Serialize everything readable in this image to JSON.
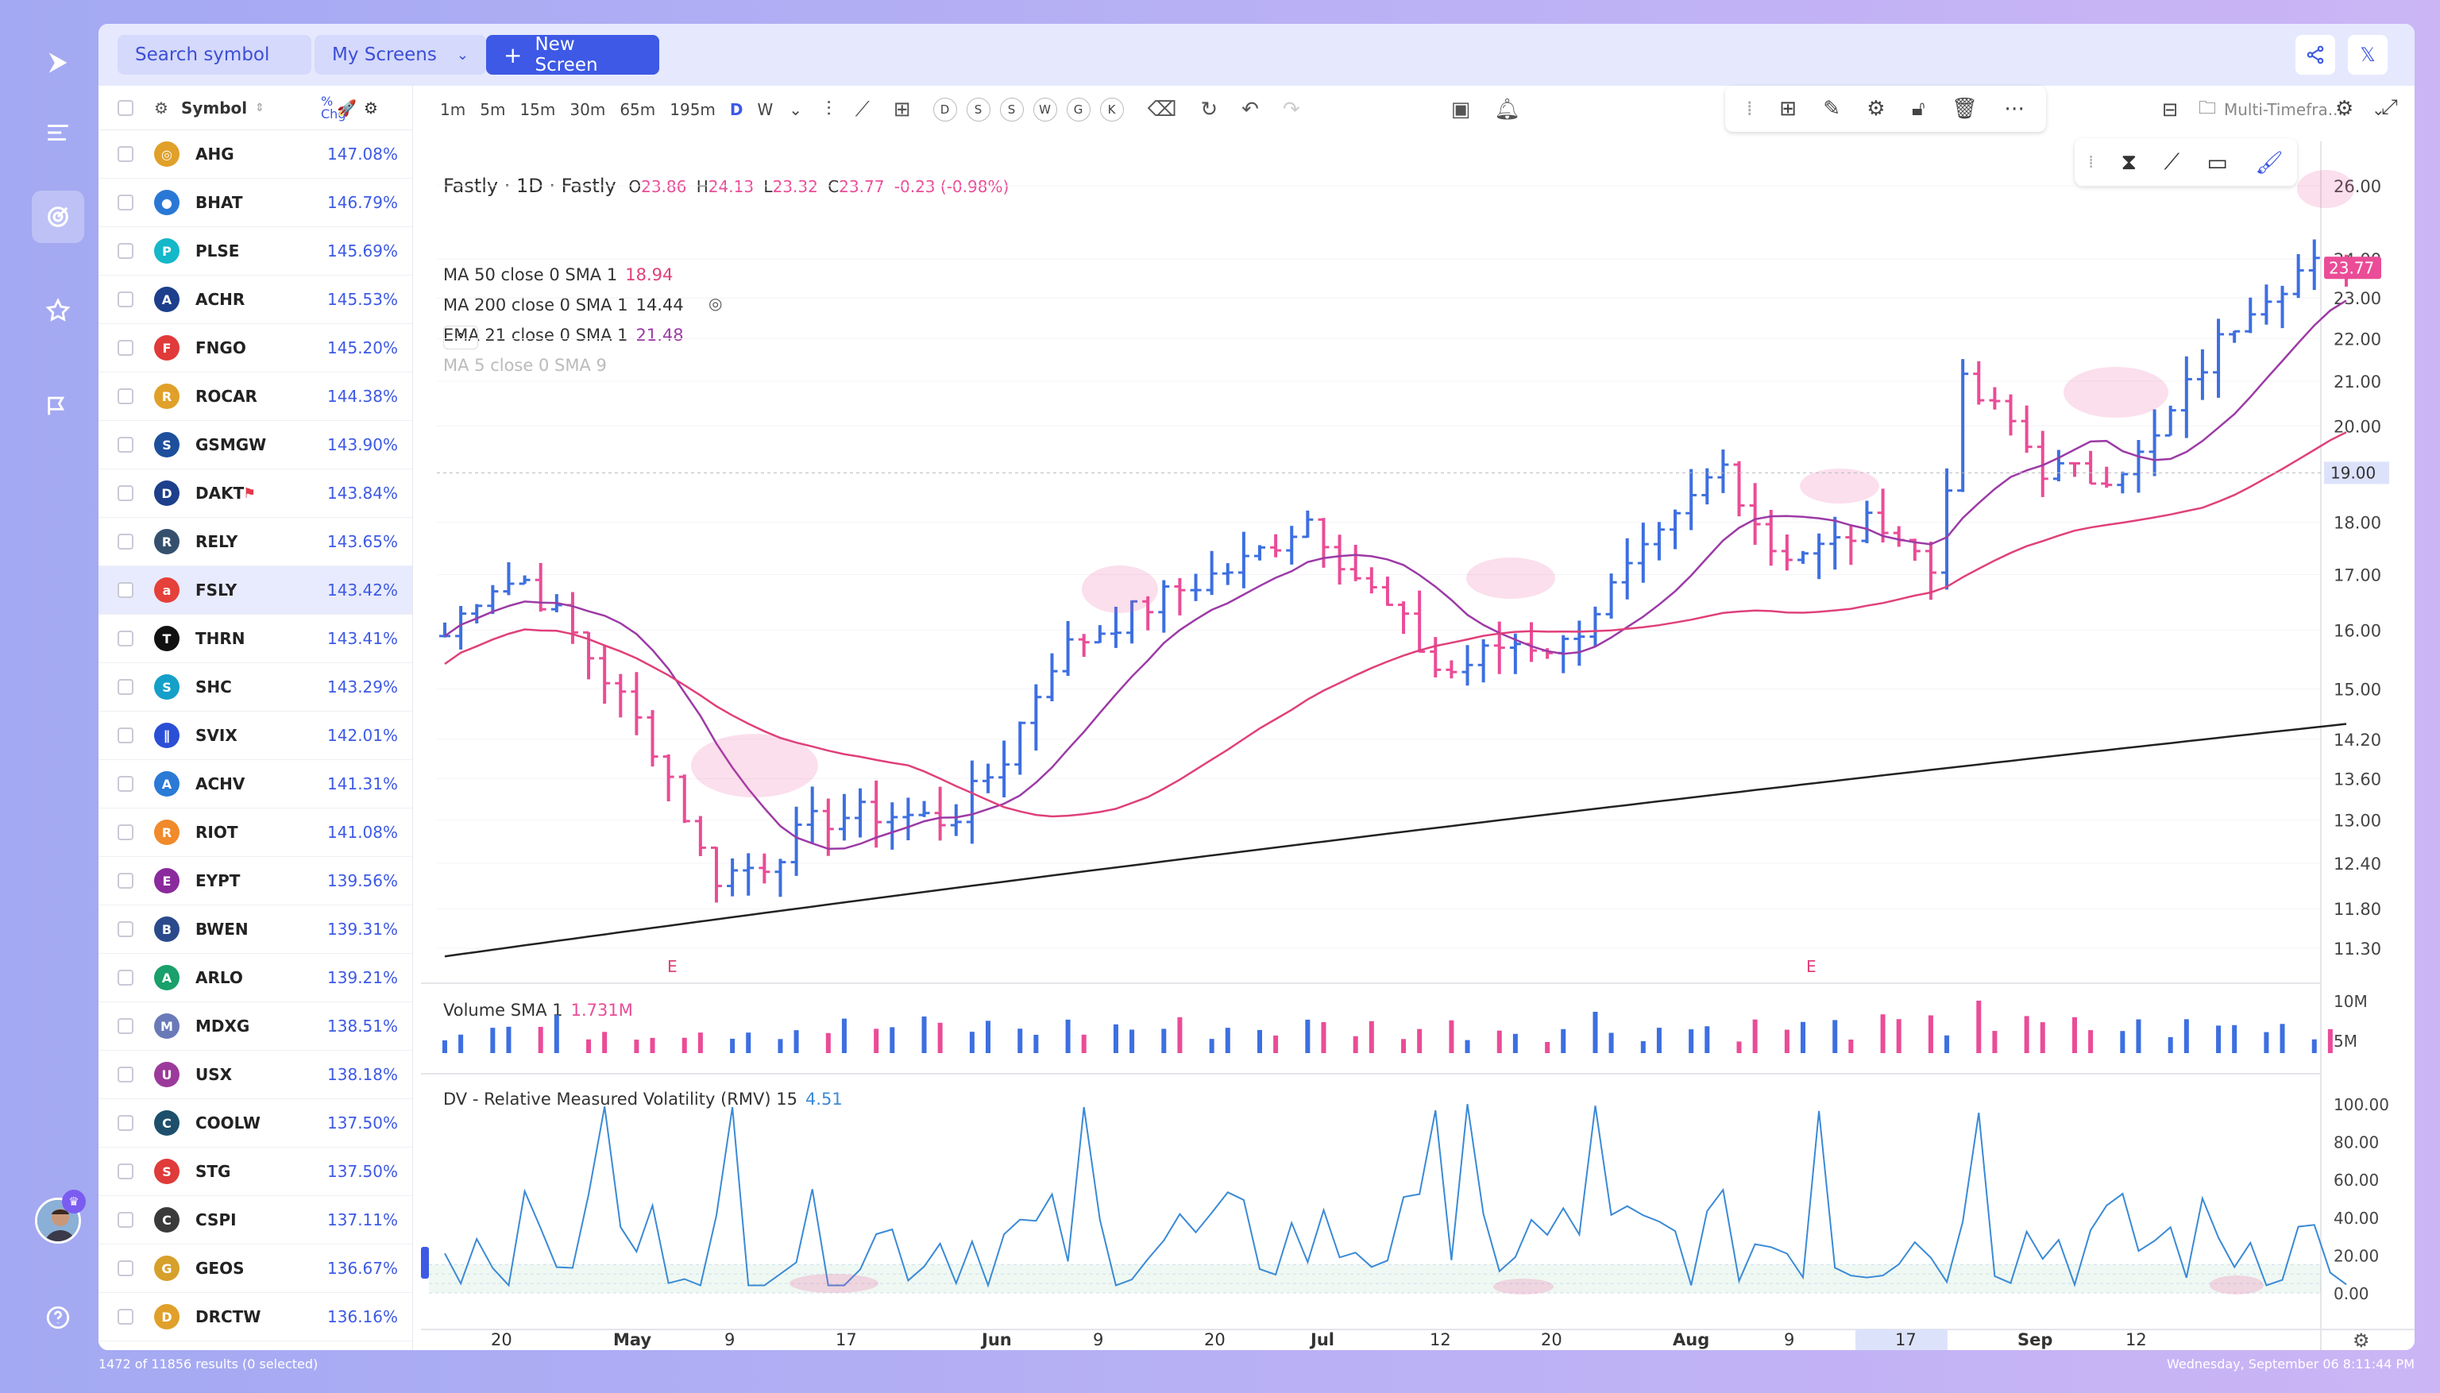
{
  "topbar": {
    "search_label": "Search symbol",
    "screens_label": "My Screens",
    "new_screen_label": "New Screen"
  },
  "list": {
    "header_symbol": "Symbol",
    "header_pct": "% Chg",
    "rows": [
      {
        "ticker": "AHG",
        "pct": "147.08%",
        "color": "#e0a02a",
        "glyph": "◎"
      },
      {
        "ticker": "BHAT",
        "pct": "146.79%",
        "color": "#2a78d6",
        "glyph": "●"
      },
      {
        "ticker": "PLSE",
        "pct": "145.69%",
        "color": "#14b8c8",
        "glyph": "P"
      },
      {
        "ticker": "ACHR",
        "pct": "145.53%",
        "color": "#1d3f8c",
        "glyph": "A"
      },
      {
        "ticker": "FNGO",
        "pct": "145.20%",
        "color": "#e03a3a",
        "glyph": "F"
      },
      {
        "ticker": "ROCAR",
        "pct": "144.38%",
        "color": "#e0a02a",
        "glyph": "R"
      },
      {
        "ticker": "GSMGW",
        "pct": "143.90%",
        "color": "#1d4f9c",
        "glyph": "S"
      },
      {
        "ticker": "DAKT",
        "pct": "143.84%",
        "color": "#1d3f8c",
        "glyph": "D",
        "flag": "⚑"
      },
      {
        "ticker": "RELY",
        "pct": "143.65%",
        "color": "#35506e",
        "glyph": "R"
      },
      {
        "ticker": "FSLY",
        "pct": "143.42%",
        "color": "#e5403a",
        "glyph": "a"
      },
      {
        "ticker": "THRN",
        "pct": "143.41%",
        "color": "#111111",
        "glyph": "T"
      },
      {
        "ticker": "SHC",
        "pct": "143.29%",
        "color": "#14a0c8",
        "glyph": "S"
      },
      {
        "ticker": "SVIX",
        "pct": "142.01%",
        "color": "#2a4fd6",
        "glyph": "∥"
      },
      {
        "ticker": "ACHV",
        "pct": "141.31%",
        "color": "#2a7ad6",
        "glyph": "A"
      },
      {
        "ticker": "RIOT",
        "pct": "141.08%",
        "color": "#f08a2a",
        "glyph": "R"
      },
      {
        "ticker": "EYPT",
        "pct": "139.56%",
        "color": "#8a2a9c",
        "glyph": "E"
      },
      {
        "ticker": "BWEN",
        "pct": "139.31%",
        "color": "#2a4a8c",
        "glyph": "B"
      },
      {
        "ticker": "ARLO",
        "pct": "139.21%",
        "color": "#1aa06a",
        "glyph": "A"
      },
      {
        "ticker": "MDXG",
        "pct": "138.51%",
        "color": "#6a7ab8",
        "glyph": "M"
      },
      {
        "ticker": "USX",
        "pct": "138.18%",
        "color": "#9c3a9c",
        "glyph": "U"
      },
      {
        "ticker": "COOLW",
        "pct": "137.50%",
        "color": "#1d4f6c",
        "glyph": "C"
      },
      {
        "ticker": "STG",
        "pct": "137.50%",
        "color": "#e03a3a",
        "glyph": "S"
      },
      {
        "ticker": "CSPI",
        "pct": "137.11%",
        "color": "#3a3a3a",
        "glyph": "C"
      },
      {
        "ticker": "GEOS",
        "pct": "136.67%",
        "color": "#d6a02a",
        "glyph": "G"
      },
      {
        "ticker": "DRCTW",
        "pct": "136.16%",
        "color": "#e0a02a",
        "glyph": "D"
      }
    ]
  },
  "toolbar": {
    "timeframes": [
      "1m",
      "5m",
      "15m",
      "30m",
      "65m",
      "195m",
      "D",
      "W"
    ],
    "active_tf": "D",
    "circles": [
      "D",
      "S",
      "S",
      "W",
      "G",
      "K"
    ],
    "layout_label": "Multi-Timefra..."
  },
  "chart": {
    "title": "Fastly · 1D · Fastly",
    "ohlc": {
      "o_label": "O",
      "o": "23.86",
      "h_label": "H",
      "h": "24.13",
      "l_label": "L",
      "l": "23.32",
      "c_label": "C",
      "c": "23.77",
      "chg": "-0.23 (-0.98%)"
    },
    "indicators": [
      {
        "label": "MA 50 close 0 SMA 1",
        "value": "18.94",
        "color": "#e0407a"
      },
      {
        "label": "MA 200 close 0 SMA 1",
        "value": "14.44",
        "color": "#333333"
      },
      {
        "label": "EMA 21 close 0 SMA 1",
        "value": "21.48",
        "color": "#9c3aa6"
      },
      {
        "label": "MA 5 close 0 SMA 9",
        "value": "",
        "color": "#bbbbbb"
      }
    ],
    "price_ticks": [
      "26.00",
      "24.00",
      "23.00",
      "22.00",
      "21.00",
      "20.00",
      "18.00",
      "17.00",
      "16.00",
      "15.00",
      "14.20",
      "13.60",
      "13.00",
      "12.40",
      "11.80",
      "11.30"
    ],
    "last_price": "23.77",
    "cursor_price": "19.00",
    "earnings_marker": "E",
    "volume": {
      "label": "Volume SMA 1",
      "value": "1.731M",
      "ticks": [
        "10M",
        "5M"
      ]
    },
    "rmv": {
      "label": "DV - Relative Measured Volatility (RMV) 15",
      "value": "4.51",
      "ticks": [
        "100.00",
        "80.00",
        "60.00",
        "40.00",
        "20.00",
        "0.00"
      ]
    },
    "xaxis": [
      "20",
      "May",
      "9",
      "17",
      "Jun",
      "9",
      "20",
      "Jul",
      "12",
      "20",
      "Aug",
      "9",
      "17",
      "Sep",
      "12"
    ],
    "x_highlight": "17"
  },
  "status": {
    "left": "1472 of 11856 results (0 selected)",
    "right": "Wednesday, September 06 8:11:44 PM"
  },
  "colors": {
    "up": "#3d6fe0",
    "down": "#ea4c97",
    "accent": "#3d59e5"
  }
}
